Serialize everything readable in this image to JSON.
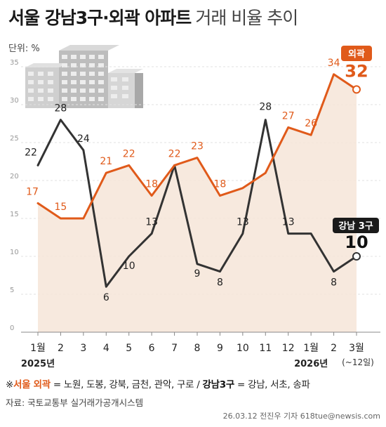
{
  "header": {
    "title_bold": "서울 강남3구·외곽 아파트",
    "title_light": "거래 비율 추이",
    "unit": "단위: %"
  },
  "chart_data": {
    "type": "line",
    "categories": [
      "1월",
      "2",
      "3",
      "4",
      "5",
      "6",
      "7",
      "8",
      "9",
      "10",
      "11",
      "12",
      "1월",
      "2",
      "3월"
    ],
    "year_labels": [
      {
        "index": 0,
        "label": "2025년"
      },
      {
        "index": 12,
        "label": "2026년"
      }
    ],
    "last_category_note": "(~12일)",
    "ylim": [
      0,
      35
    ],
    "yticks": [
      0,
      5,
      10,
      15,
      20,
      25,
      30,
      35
    ],
    "grid": true,
    "series": [
      {
        "name": "외곽",
        "color": "#e05a1a",
        "values": [
          17,
          15,
          15,
          21,
          22,
          18,
          22,
          23,
          18,
          19,
          21,
          27,
          26,
          34,
          32
        ],
        "labels": [
          "17",
          "15",
          "",
          "21",
          "22",
          "18",
          "22",
          "23",
          "18",
          "",
          "",
          "27",
          "26",
          "34",
          "32"
        ],
        "area_fill": "#f6e5d8"
      },
      {
        "name": "강남 3구",
        "color": "#333333",
        "values": [
          22,
          28,
          24,
          6,
          10,
          13,
          22,
          9,
          8,
          13,
          28,
          13,
          13,
          8,
          10
        ],
        "labels": [
          "22",
          "28",
          "24",
          "6",
          "10",
          "13",
          "",
          "9",
          "8",
          "13",
          "28",
          "13",
          "",
          "8",
          "10"
        ]
      }
    ]
  },
  "legend_note": {
    "prefix": "※",
    "outer_label": "서울 외곽",
    "outer_list": " = 노원, 도봉, 강북, 금천, 관악, 구로 / ",
    "gangnam_label": "강남3구",
    "gangnam_list": " = 강남, 서초, 송파"
  },
  "source": "자료: 국토교통부 실거래가공개시스템",
  "credit": "26.03.12 전진우 기자 618tue@newsis.com"
}
